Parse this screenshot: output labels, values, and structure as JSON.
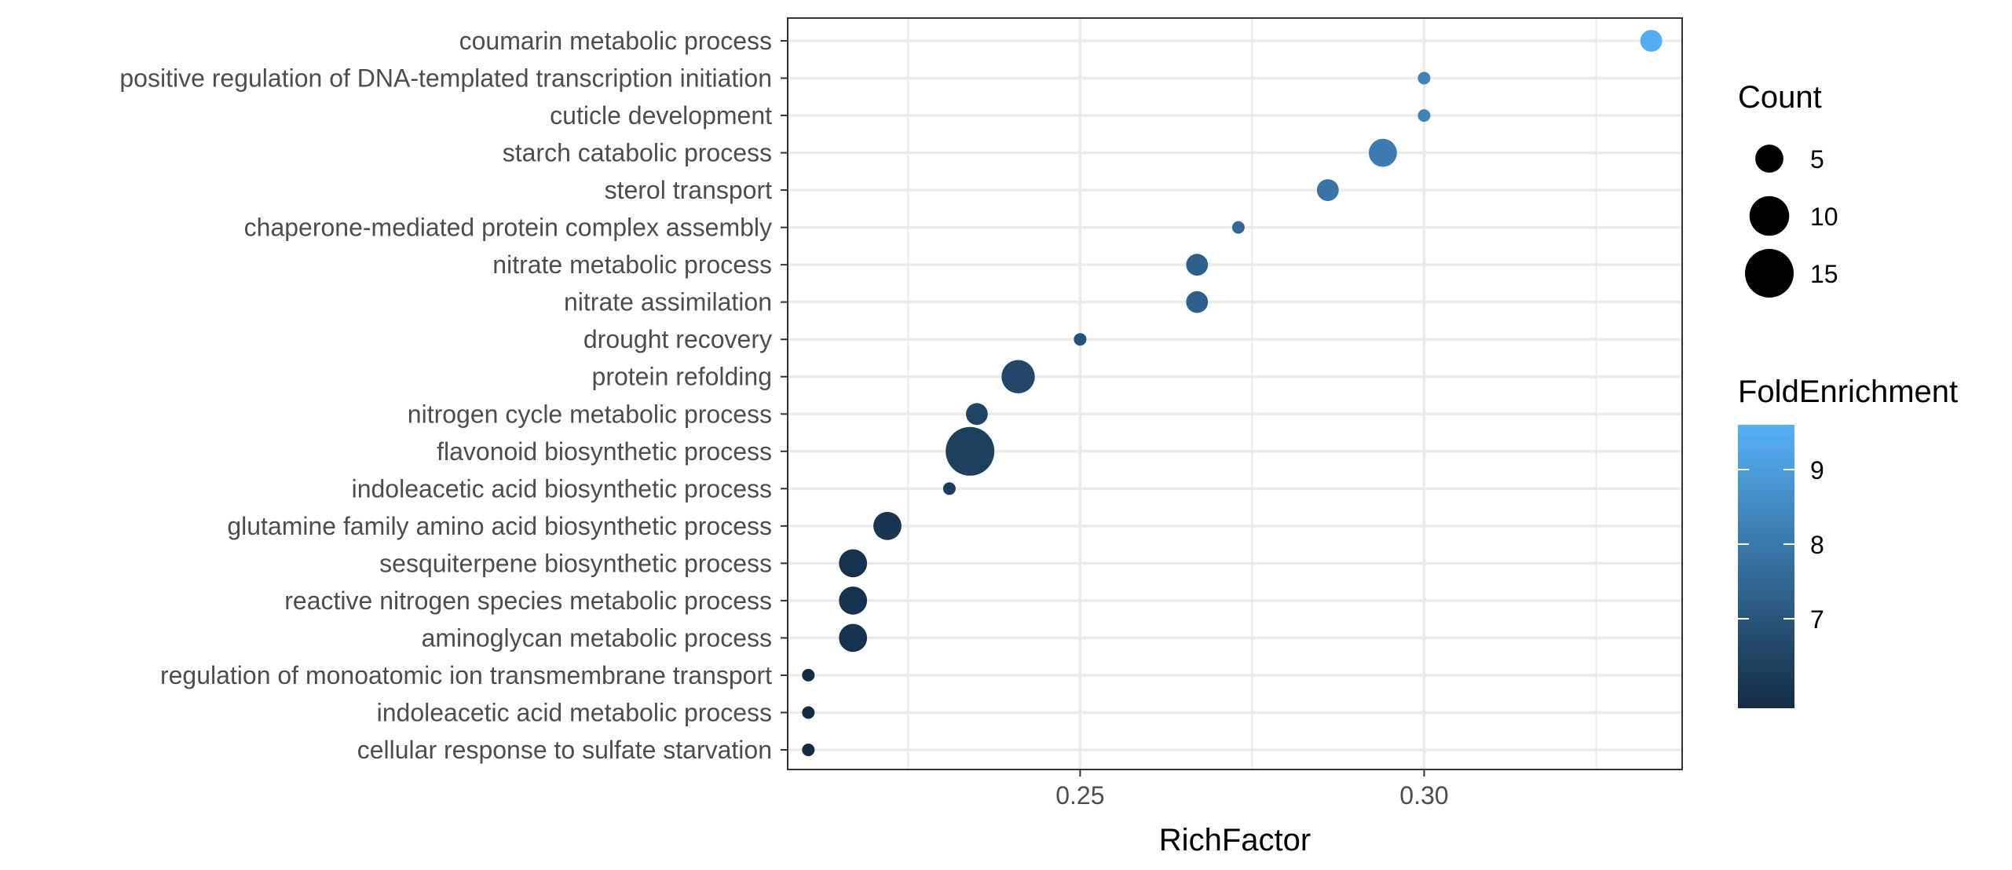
{
  "chart_data": {
    "type": "scatter",
    "title": "",
    "xlabel": "RichFactor",
    "ylabel": "",
    "xlim": [
      0.2075,
      0.3375
    ],
    "x_ticks": [
      0.25,
      0.3
    ],
    "x_tick_labels": [
      "0.25",
      "0.30"
    ],
    "x_minor_ticks": [
      0.225,
      0.275,
      0.325
    ],
    "grid": true,
    "categories": [
      "coumarin metabolic process",
      "positive regulation of DNA-templated transcription initiation",
      "cuticle development",
      "starch catabolic process",
      "sterol transport",
      "chaperone-mediated protein complex assembly",
      "nitrate metabolic process",
      "nitrate assimilation",
      "drought recovery",
      "protein refolding",
      "nitrogen cycle metabolic process",
      "flavonoid biosynthetic process",
      "indoleacetic acid biosynthetic process",
      "glutamine family amino acid biosynthetic process",
      "sesquiterpene biosynthetic process",
      "reactive nitrogen species metabolic process",
      "aminoglycan metabolic process",
      "regulation of monoatomic ion transmembrane transport",
      "indoleacetic acid metabolic process",
      "cellular response to sulfate starvation"
    ],
    "points": [
      {
        "term": "coumarin metabolic process",
        "rich_factor": 0.333,
        "count": 3,
        "fold_enrichment": 9.5
      },
      {
        "term": "positive regulation of DNA-templated transcription initiation",
        "rich_factor": 0.3,
        "count": 1,
        "fold_enrichment": 8.3
      },
      {
        "term": "cuticle development",
        "rich_factor": 0.3,
        "count": 1,
        "fold_enrichment": 8.3
      },
      {
        "term": "starch catabolic process",
        "rich_factor": 0.294,
        "count": 5,
        "fold_enrichment": 8.1
      },
      {
        "term": "sterol transport",
        "rich_factor": 0.286,
        "count": 3,
        "fold_enrichment": 7.9
      },
      {
        "term": "chaperone-mediated protein complex assembly",
        "rich_factor": 0.273,
        "count": 1,
        "fold_enrichment": 7.5
      },
      {
        "term": "nitrate metabolic process",
        "rich_factor": 0.267,
        "count": 3,
        "fold_enrichment": 7.3
      },
      {
        "term": "nitrate assimilation",
        "rich_factor": 0.267,
        "count": 3,
        "fold_enrichment": 7.3
      },
      {
        "term": "drought recovery",
        "rich_factor": 0.25,
        "count": 1,
        "fold_enrichment": 6.9
      },
      {
        "term": "protein refolding",
        "rich_factor": 0.241,
        "count": 7,
        "fold_enrichment": 6.6
      },
      {
        "term": "nitrogen cycle metabolic process",
        "rich_factor": 0.235,
        "count": 3,
        "fold_enrichment": 6.5
      },
      {
        "term": "flavonoid biosynthetic process",
        "rich_factor": 0.234,
        "count": 15,
        "fold_enrichment": 6.4
      },
      {
        "term": "indoleacetic acid biosynthetic process",
        "rich_factor": 0.231,
        "count": 1,
        "fold_enrichment": 6.3
      },
      {
        "term": "glutamine family amino acid biosynthetic process",
        "rich_factor": 0.222,
        "count": 5,
        "fold_enrichment": 6.1
      },
      {
        "term": "sesquiterpene biosynthetic process",
        "rich_factor": 0.217,
        "count": 5,
        "fold_enrichment": 6.0
      },
      {
        "term": "reactive nitrogen species metabolic process",
        "rich_factor": 0.217,
        "count": 5,
        "fold_enrichment": 6.0
      },
      {
        "term": "aminoglycan metabolic process",
        "rich_factor": 0.217,
        "count": 5,
        "fold_enrichment": 6.0
      },
      {
        "term": "regulation of monoatomic ion transmembrane transport",
        "rich_factor": 0.2105,
        "count": 1,
        "fold_enrichment": 5.8
      },
      {
        "term": "indoleacetic acid metabolic process",
        "rich_factor": 0.2105,
        "count": 1,
        "fold_enrichment": 5.8
      },
      {
        "term": "cellular response to sulfate starvation",
        "rich_factor": 0.2105,
        "count": 1,
        "fold_enrichment": 5.8
      }
    ],
    "legend_size": {
      "title": "Count",
      "entries": [
        {
          "label": "5",
          "value": 5
        },
        {
          "label": "10",
          "value": 10
        },
        {
          "label": "15",
          "value": 15
        }
      ]
    },
    "legend_color": {
      "title": "FoldEnrichment",
      "range": [
        5.8,
        9.6
      ],
      "ticks": [
        {
          "label": "7",
          "value": 7
        },
        {
          "label": "8",
          "value": 8
        },
        {
          "label": "9",
          "value": 9
        }
      ],
      "low_color": "#132b43",
      "high_color": "#56b1f7"
    },
    "legend_placement": "right",
    "colors": {
      "panel_border": "#333333",
      "grid": "#ebebeb",
      "tick": "#333333",
      "background": "#ffffff"
    }
  }
}
